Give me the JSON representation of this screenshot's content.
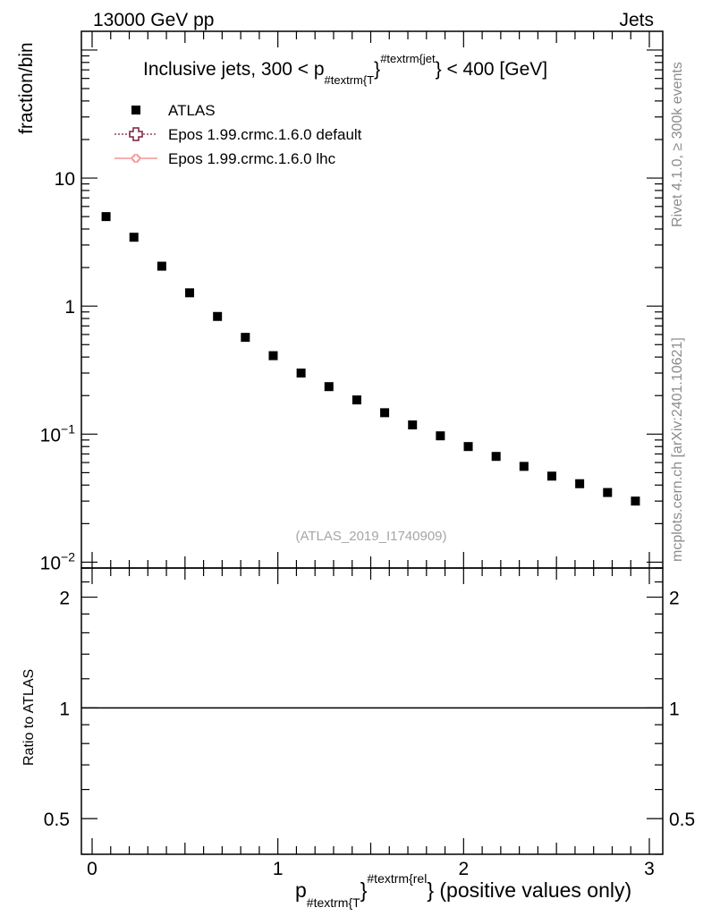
{
  "header": {
    "left": "13000 GeV pp",
    "right": "Jets"
  },
  "side_labels": {
    "rivet": "Rivet 4.1.0, ≥ 300k events",
    "mcplots": "mcplots.cern.ch [arXiv:2401.10621]"
  },
  "chart_data": {
    "type": "scatter",
    "title": {
      "prefix": "Inclusive jets, 300 < p",
      "sub": "#textrm{T",
      "mid": "}",
      "sup": "#textrm{jet",
      "suffix": "} < 400 [GeV]"
    },
    "analysis_id": "(ATLAS_2019_I1740909)",
    "xlabel": {
      "base": "p",
      "sub": "#textrm{T",
      "mid": "}",
      "sup": "#textrm{rel",
      "suffix": "} (positive values only)"
    },
    "ylabel": "fraction/bin",
    "ratio_ylabel": "Ratio to ATLAS",
    "xlim": [
      0,
      3
    ],
    "ylim": [
      0.009,
      140
    ],
    "yscale": "log",
    "ratio_ylim": [
      0.4,
      2.4
    ],
    "legend_position": "top-left",
    "x_tick_labels": [
      "0",
      "1",
      "2",
      "3"
    ],
    "x_ticks": [
      0,
      1,
      2,
      3
    ],
    "y_tick_labels": [
      {
        "value": 10,
        "base": "10",
        "exp": ""
      },
      {
        "value": 1,
        "base": "1",
        "exp": ""
      },
      {
        "value": 0.1,
        "base": "10",
        "exp": "−1"
      },
      {
        "value": 0.01,
        "base": "10",
        "exp": "−2"
      }
    ],
    "ratio_tick_labels": [
      {
        "value": 2,
        "label": "2"
      },
      {
        "value": 1,
        "label": "1"
      },
      {
        "value": 0.5,
        "label": "0.5"
      }
    ],
    "series": [
      {
        "name": "ATLAS",
        "marker": "filled-square",
        "color": "#000000",
        "x": [
          0.075,
          0.225,
          0.375,
          0.525,
          0.675,
          0.825,
          0.975,
          1.125,
          1.275,
          1.425,
          1.575,
          1.725,
          1.875,
          2.025,
          2.175,
          2.325,
          2.475,
          2.625,
          2.775,
          2.925
        ],
        "y": [
          5.0,
          3.45,
          2.05,
          1.27,
          0.83,
          0.57,
          0.41,
          0.3,
          0.235,
          0.185,
          0.147,
          0.118,
          0.097,
          0.08,
          0.067,
          0.056,
          0.047,
          0.041,
          0.035,
          0.03
        ]
      },
      {
        "name": "Epos 1.99.crmc.1.6.0 default",
        "marker": "open-cross",
        "line": "dotted",
        "color": "#7a1f3d",
        "x": [],
        "y": []
      },
      {
        "name": "Epos 1.99.crmc.1.6.0 lhc",
        "marker": "open-cross",
        "line": "solid",
        "color": "#f08080",
        "x": [],
        "y": []
      }
    ],
    "ratio_reference": 1
  }
}
